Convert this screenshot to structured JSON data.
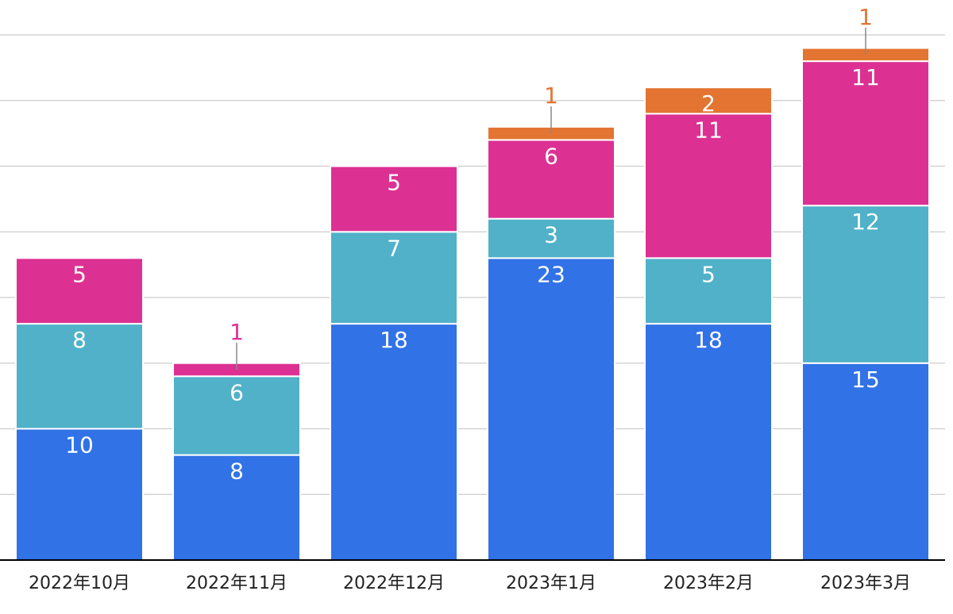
{
  "chart_data": {
    "type": "bar",
    "stacked": true,
    "categories": [
      "2022年10月",
      "2022年11月",
      "2022年12月",
      "2023年1月",
      "2023年2月",
      "2023年3月"
    ],
    "series": [
      {
        "values": [
          10,
          8,
          18,
          23,
          18,
          15
        ],
        "color": "#3172e6"
      },
      {
        "values": [
          8,
          6,
          7,
          3,
          5,
          12
        ],
        "color": "#50b1c9"
      },
      {
        "values": [
          5,
          1,
          5,
          6,
          11,
          11
        ],
        "color": "#dc3193"
      },
      {
        "values": [
          0,
          0,
          0,
          1,
          2,
          1
        ],
        "color": "#e37431"
      }
    ],
    "ylim": [
      0,
      40
    ],
    "grid": true,
    "legend": "none"
  }
}
